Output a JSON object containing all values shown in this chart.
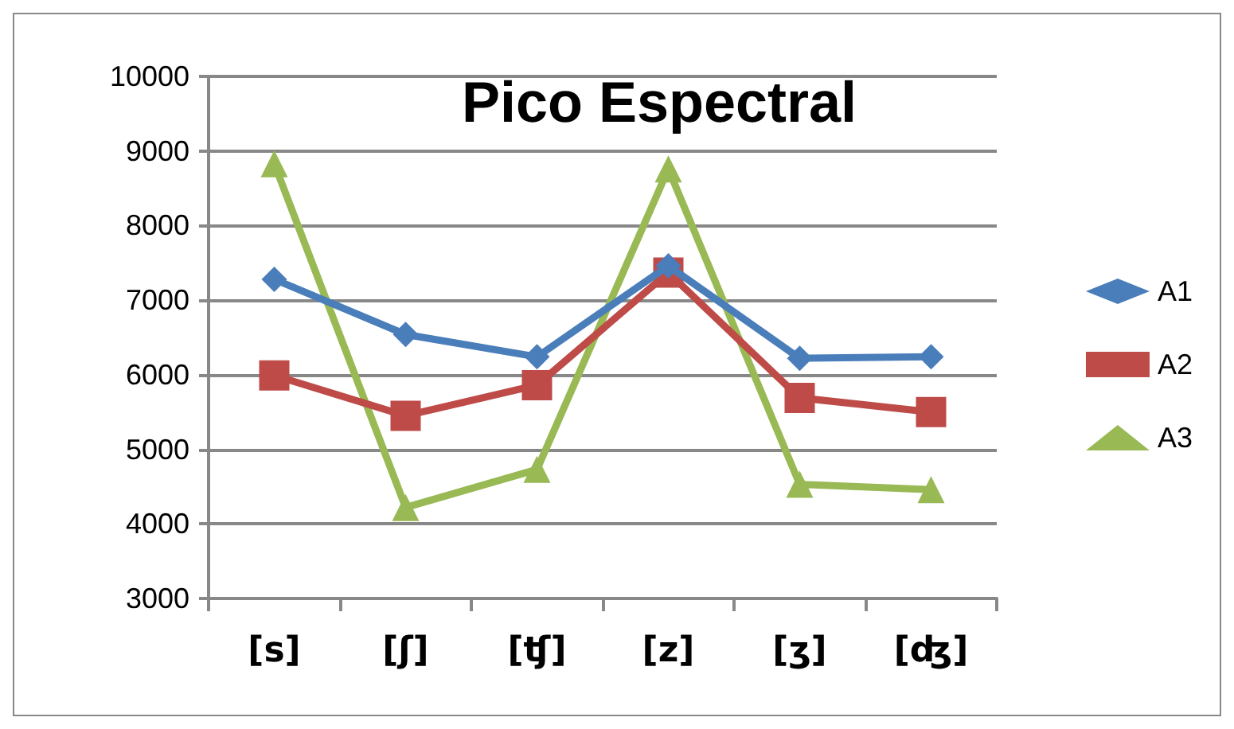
{
  "chart_data": {
    "type": "line",
    "title": "Pico Espectral",
    "categories": [
      "[s]",
      "[ʃ]",
      "[ʧ]",
      "[z]",
      "[ʒ]",
      "[ʤ]"
    ],
    "series": [
      {
        "name": "A1",
        "color": "#4a7ebb",
        "marker": "diamond",
        "values": [
          7280,
          6540,
          6240,
          7460,
          6220,
          6240
        ]
      },
      {
        "name": "A2",
        "color": "#be4b48",
        "marker": "square",
        "values": [
          5990,
          5450,
          5860,
          7370,
          5690,
          5500
        ]
      },
      {
        "name": "A3",
        "color": "#98b954",
        "marker": "triangle",
        "values": [
          8830,
          4220,
          4730,
          8760,
          4530,
          4460
        ]
      }
    ],
    "ylim": [
      3000,
      10000
    ],
    "yticks": [
      3000,
      4000,
      5000,
      6000,
      7000,
      8000,
      9000,
      10000
    ],
    "grid": "y",
    "legend": "right",
    "line_style": "solid"
  }
}
